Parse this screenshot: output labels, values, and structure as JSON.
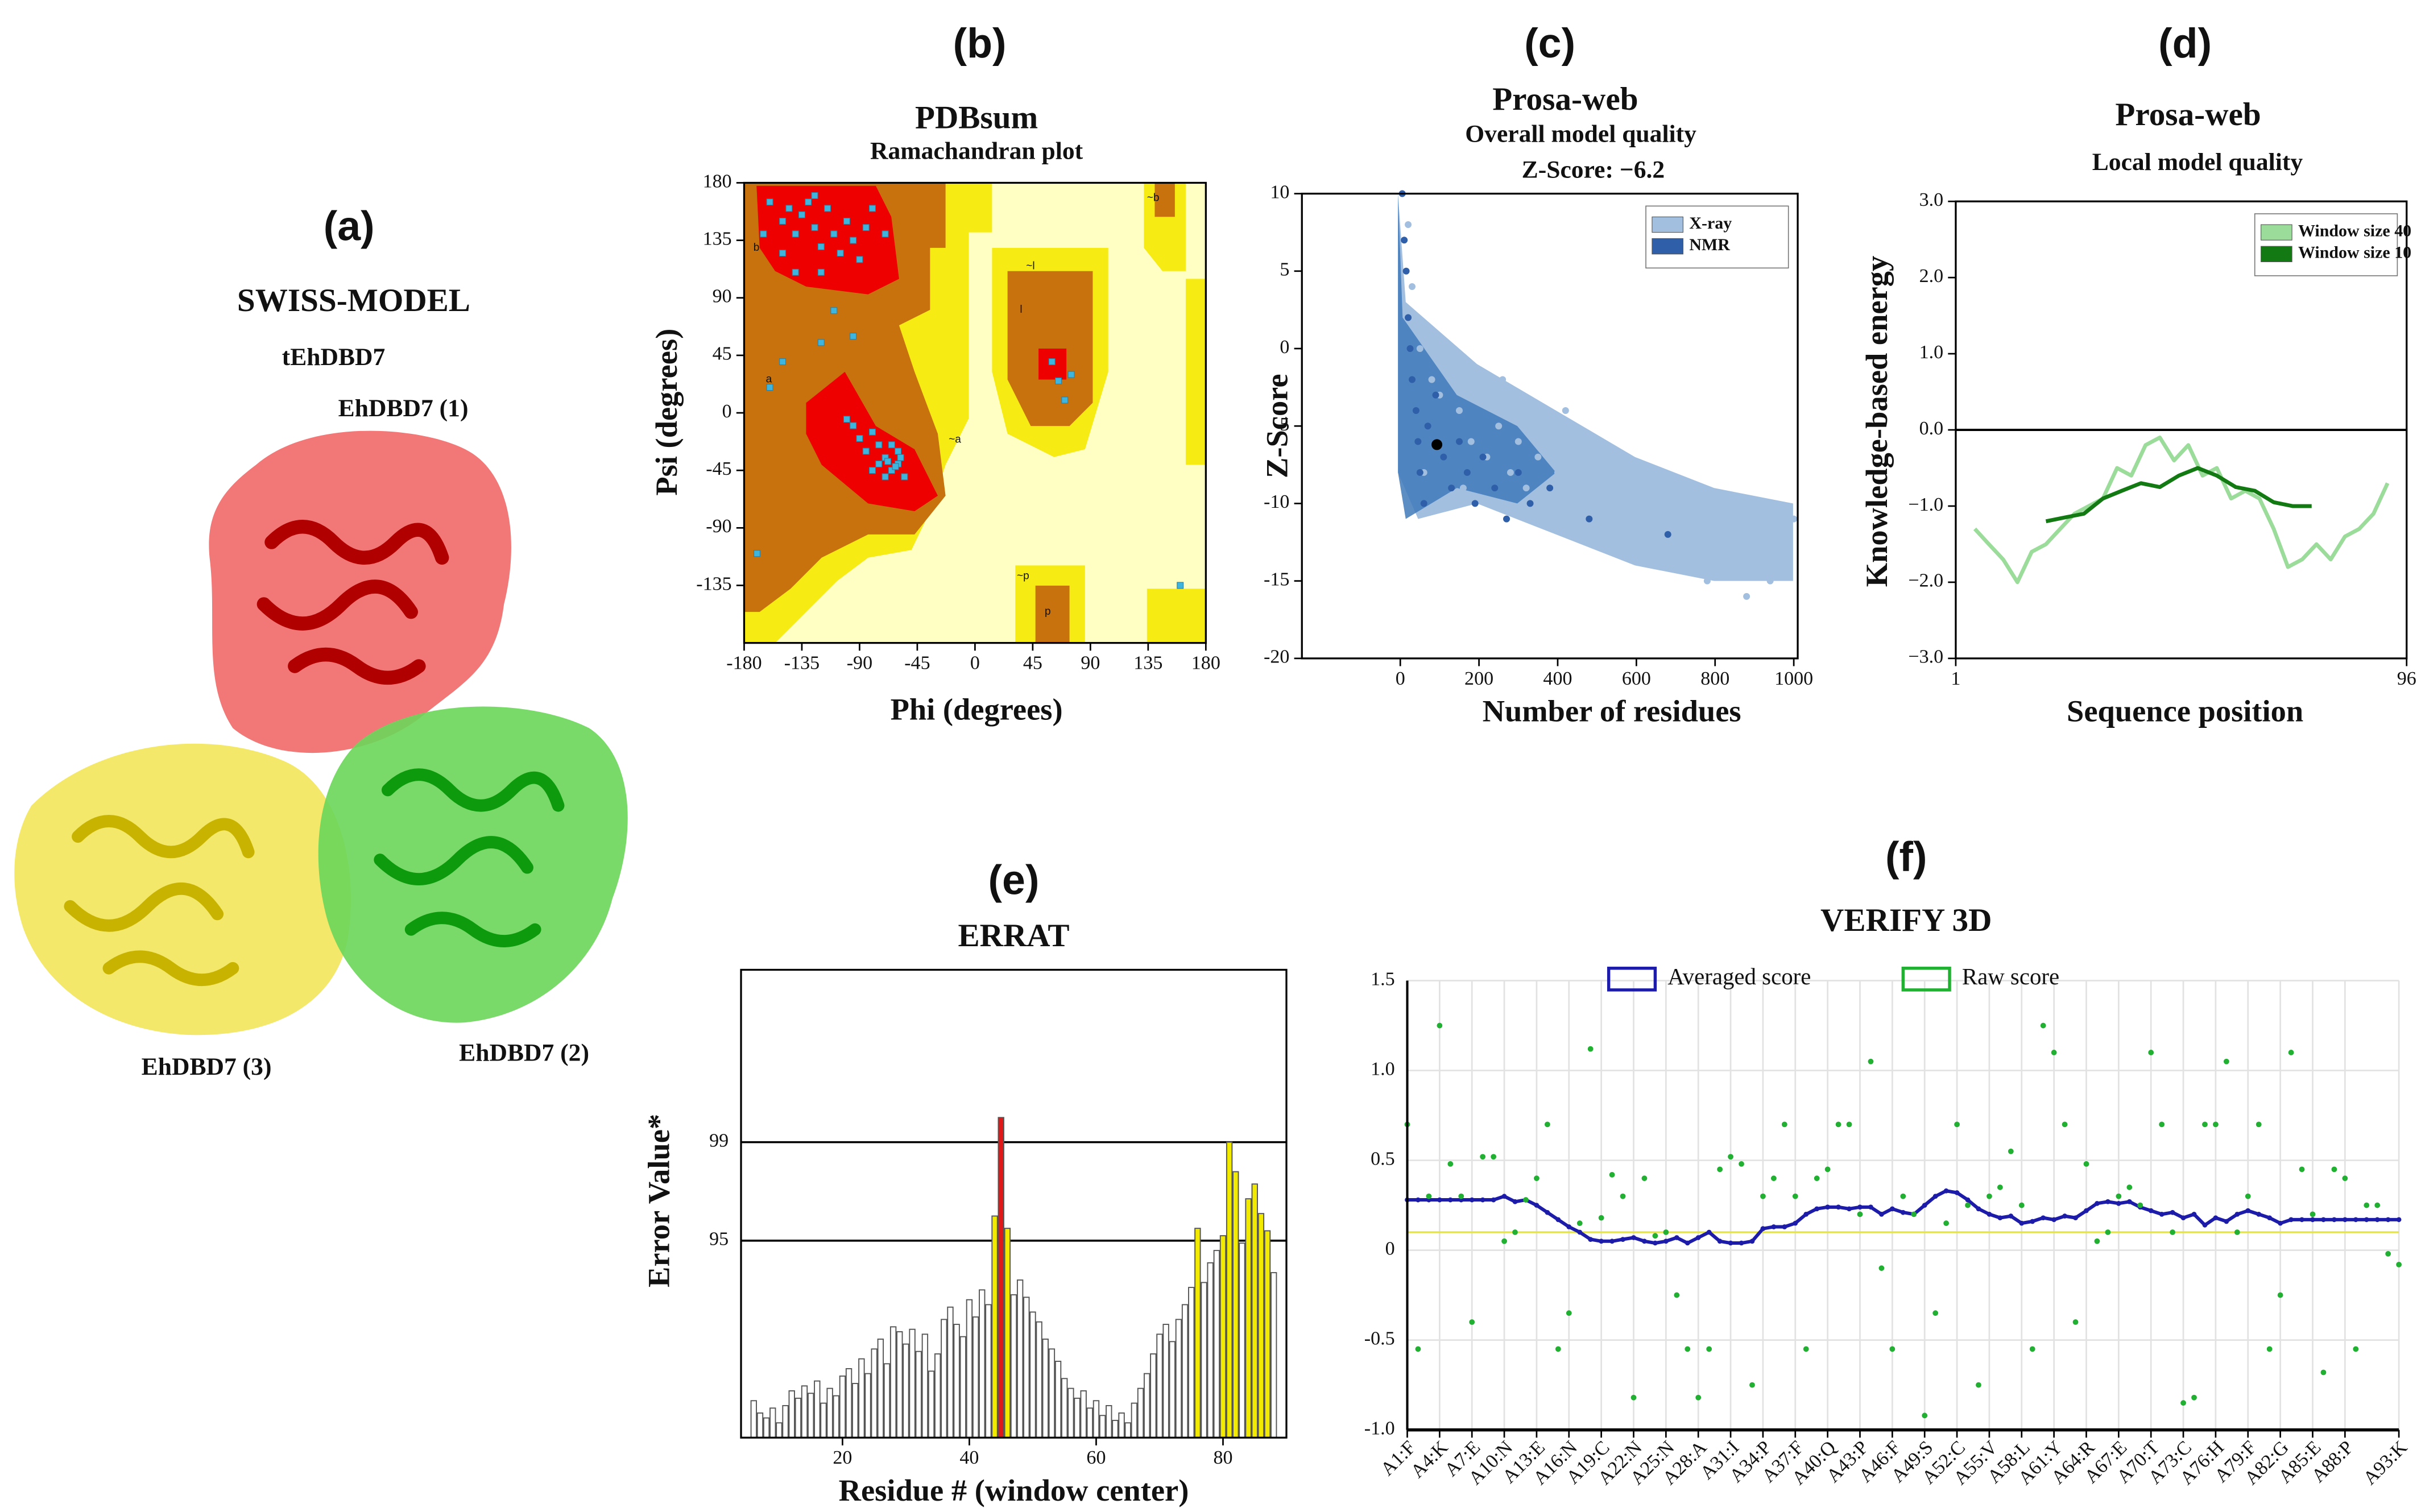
{
  "structure": {
    "header": "(a)",
    "title": "SWISS-MODEL",
    "name": "tEhDBD7",
    "domains": [
      "EhDBD7 (1)",
      "EhDBD7 (2)",
      "EhDBD7 (3)"
    ]
  },
  "chart_data": [
    {
      "type": "scatter",
      "header": "(b)",
      "title": "PDBsum",
      "subtitle": "Ramachandran plot",
      "xlabel": "Phi (degrees)",
      "ylabel": "Psi (degrees)",
      "region_labels": [
        "b",
        "a",
        "l",
        "~b",
        "~a",
        "p",
        "~p",
        "~l"
      ],
      "x": [
        -160,
        -150,
        -145,
        -140,
        -135,
        -130,
        -125,
        -120,
        -115,
        -110,
        -105,
        -100,
        -95,
        -90,
        -85,
        -150,
        -165,
        -140,
        -120,
        -80,
        -70,
        -125,
        -90,
        -85,
        -80,
        -75,
        -70,
        -65,
        -60,
        -65,
        -70,
        -55,
        -60,
        -80,
        -75,
        -95,
        -100,
        -68,
        -62,
        -58,
        -150,
        -120,
        -110,
        -95,
        -160,
        60,
        65,
        70,
        75,
        -170,
        160
      ],
      "y": [
        165,
        150,
        160,
        140,
        155,
        165,
        145,
        130,
        160,
        140,
        125,
        150,
        135,
        120,
        145,
        125,
        140,
        110,
        110,
        160,
        140,
        170,
        -20,
        -30,
        -15,
        -40,
        -35,
        -45,
        -40,
        -25,
        -50,
        -50,
        -30,
        -45,
        -25,
        -10,
        -5,
        -38,
        -42,
        -35,
        40,
        55,
        80,
        60,
        20,
        40,
        25,
        10,
        30,
        -110,
        -135
      ],
      "color": "#3fb4dc",
      "xlim": [
        -180,
        180
      ],
      "ylim": [
        -180,
        180
      ],
      "xticks": [
        -180,
        -135,
        -90,
        -45,
        0,
        45,
        90,
        135,
        180
      ],
      "yticks": [
        -135,
        -90,
        -45,
        0,
        45,
        90,
        135,
        180
      ]
    },
    {
      "type": "scatter",
      "header": "(c)",
      "title": "Prosa-web",
      "subtitle": "Overall model quality",
      "annotation": "Z-Score: −6.2",
      "xlabel": "Number of residues",
      "ylabel": "Z-Score",
      "series": [
        {
          "name": "X-ray",
          "color": "#a3bfe0",
          "x": [
            20,
            30,
            50,
            80,
            100,
            120,
            150,
            180,
            200,
            220,
            250,
            280,
            300,
            320,
            350,
            380,
            400,
            430,
            460,
            500,
            520,
            550,
            580,
            600,
            640,
            680,
            700,
            740,
            780,
            800,
            840,
            880,
            900,
            940,
            980,
            1000,
            60,
            160,
            260,
            420
          ],
          "values": [
            8,
            4,
            0,
            -2,
            -3,
            -1,
            -4,
            -6,
            -3,
            -7,
            -5,
            -8,
            -6,
            -9,
            -7,
            -10,
            -8,
            -11,
            -9,
            -12,
            -10,
            -11,
            -13,
            -11,
            -12,
            -14,
            -12,
            -13,
            -15,
            -13,
            -14,
            -16,
            -13,
            -15,
            -14,
            -11,
            -8,
            -9,
            -2,
            -4
          ]
        },
        {
          "name": "NMR",
          "color": "#2f5fa8",
          "x": [
            5,
            10,
            15,
            20,
            25,
            30,
            40,
            45,
            50,
            60,
            70,
            90,
            110,
            130,
            150,
            170,
            190,
            210,
            240,
            270,
            300,
            330,
            380,
            480,
            680
          ],
          "values": [
            10,
            7,
            5,
            2,
            0,
            -2,
            -4,
            -6,
            -8,
            -10,
            -5,
            -3,
            -7,
            -9,
            -6,
            -8,
            -10,
            -7,
            -9,
            -11,
            -8,
            -10,
            -9,
            -11,
            -12
          ]
        }
      ],
      "highlight": {
        "x": 93,
        "y": -6.2,
        "color": "#000000"
      },
      "legend": "upper right",
      "xlim": [
        -250,
        1010
      ],
      "ylim": [
        -20,
        10
      ],
      "xticks": [
        0,
        200,
        400,
        600,
        800,
        1000
      ],
      "yticks": [
        -20,
        -15,
        -10,
        -5,
        0,
        5,
        10
      ]
    },
    {
      "type": "line",
      "header": "(d)",
      "title": "Prosa-web",
      "subtitle": "Local model quality",
      "xlabel": "Sequence position",
      "ylabel": "Knowledge-based energy",
      "series": [
        {
          "name": "Window size 40",
          "color": "#9bdc9b",
          "x": [
            5,
            8,
            11,
            14,
            17,
            20,
            23,
            26,
            29,
            32,
            35,
            38,
            41,
            44,
            47,
            50,
            53,
            56,
            59,
            62,
            65,
            68,
            71,
            74,
            77,
            80,
            83,
            86,
            89,
            92
          ],
          "values": [
            -1.3,
            -1.5,
            -1.7,
            -2.0,
            -1.6,
            -1.5,
            -1.3,
            -1.1,
            -1.0,
            -0.9,
            -0.5,
            -0.6,
            -0.2,
            -0.1,
            -0.4,
            -0.2,
            -0.6,
            -0.5,
            -0.9,
            -0.8,
            -0.9,
            -1.3,
            -1.8,
            -1.7,
            -1.5,
            -1.7,
            -1.4,
            -1.3,
            -1.1,
            -0.7
          ]
        },
        {
          "name": "Window size 10",
          "color": "#137a13",
          "x": [
            20,
            24,
            28,
            32,
            36,
            40,
            44,
            48,
            52,
            56,
            60,
            64,
            68,
            72,
            76
          ],
          "values": [
            -1.2,
            -1.15,
            -1.1,
            -0.9,
            -0.8,
            -0.7,
            -0.75,
            -0.6,
            -0.5,
            -0.6,
            -0.75,
            -0.8,
            -0.95,
            -1.0,
            -1.0
          ]
        }
      ],
      "legend": "upper right",
      "xlim": [
        1,
        96
      ],
      "ylim": [
        -3,
        3
      ],
      "xticks": [
        1,
        96
      ],
      "yticks": [
        {
          "value": -3,
          "label": "−3.0"
        },
        {
          "value": -2,
          "label": "−2.0"
        },
        {
          "value": -1,
          "label": "−1.0"
        },
        {
          "value": 0,
          "label": "0.0"
        },
        {
          "value": 1,
          "label": "1.0"
        },
        {
          "value": 2,
          "label": "2.0"
        },
        {
          "value": 3,
          "label": "3.0"
        }
      ]
    },
    {
      "type": "bar",
      "header": "(e)",
      "title": "ERRAT",
      "xlabel": "Residue # (window center)",
      "ylabel": "Error Value*",
      "x": [
        6,
        7,
        8,
        9,
        10,
        11,
        12,
        13,
        14,
        15,
        16,
        17,
        18,
        19,
        20,
        21,
        22,
        23,
        24,
        25,
        26,
        27,
        28,
        29,
        30,
        31,
        32,
        33,
        34,
        35,
        36,
        37,
        38,
        39,
        40,
        41,
        42,
        43,
        44,
        45,
        46,
        47,
        48,
        49,
        50,
        51,
        52,
        53,
        54,
        55,
        56,
        57,
        58,
        59,
        60,
        61,
        62,
        63,
        64,
        65,
        66,
        67,
        68,
        69,
        70,
        71,
        72,
        73,
        74,
        75,
        76,
        77,
        78,
        79,
        80,
        81,
        82,
        83,
        84,
        85,
        86,
        87,
        88
      ],
      "values": [
        88.5,
        88.0,
        87.8,
        88.2,
        87.6,
        88.3,
        88.9,
        88.6,
        89.1,
        88.8,
        89.3,
        88.4,
        89.0,
        88.7,
        89.5,
        89.8,
        89.2,
        90.2,
        89.6,
        90.6,
        91.0,
        90.0,
        91.5,
        91.3,
        90.8,
        91.4,
        90.5,
        91.2,
        89.7,
        90.4,
        91.8,
        92.3,
        91.6,
        91.1,
        92.6,
        91.9,
        93.0,
        92.4,
        96.0,
        100.0,
        95.5,
        92.8,
        93.4,
        92.7,
        92.1,
        91.7,
        91.0,
        90.6,
        90.1,
        89.4,
        89.0,
        88.6,
        88.9,
        88.2,
        88.5,
        87.9,
        88.3,
        87.7,
        88.0,
        87.6,
        88.4,
        89.0,
        89.6,
        90.4,
        91.2,
        91.6,
        90.9,
        91.8,
        92.4,
        93.1,
        95.5,
        93.3,
        94.1,
        94.6,
        95.2,
        99.0,
        97.8,
        94.9,
        96.7,
        97.3,
        96.1,
        95.4,
        93.7
      ],
      "colors": [
        "#ffffff",
        "#f2ea00",
        "#e01818"
      ],
      "edge_color": "#555555",
      "grid": true,
      "grid_color": "#000000",
      "xlim": [
        4,
        90
      ],
      "ylim": [
        87,
        106
      ],
      "xticks": [
        20,
        40,
        60,
        80
      ],
      "yticks": [
        95,
        99
      ]
    },
    {
      "type": "line",
      "header": "(f)",
      "title": "VERIFY 3D",
      "x": [
        1,
        2,
        3,
        4,
        5,
        6,
        7,
        8,
        9,
        10,
        11,
        12,
        13,
        14,
        15,
        16,
        17,
        18,
        19,
        20,
        21,
        22,
        23,
        24,
        25,
        26,
        27,
        28,
        29,
        30,
        31,
        32,
        33,
        34,
        35,
        36,
        37,
        38,
        39,
        40,
        41,
        42,
        43,
        44,
        45,
        46,
        47,
        48,
        49,
        50,
        51,
        52,
        53,
        54,
        55,
        56,
        57,
        58,
        59,
        60,
        61,
        62,
        63,
        64,
        65,
        66,
        67,
        68,
        69,
        70,
        71,
        72,
        73,
        74,
        75,
        76,
        77,
        78,
        79,
        80,
        81,
        82,
        83,
        84,
        85,
        86,
        87,
        88,
        89,
        90,
        91,
        92,
        93
      ],
      "series": [
        {
          "name": "Averaged score",
          "color": "#1c1ca8",
          "style": "line",
          "values": [
            0.28,
            0.28,
            0.28,
            0.28,
            0.28,
            0.28,
            0.28,
            0.28,
            0.28,
            0.3,
            0.27,
            0.28,
            0.25,
            0.21,
            0.17,
            0.13,
            0.1,
            0.06,
            0.05,
            0.05,
            0.06,
            0.07,
            0.05,
            0.04,
            0.05,
            0.07,
            0.04,
            0.07,
            0.1,
            0.05,
            0.04,
            0.04,
            0.05,
            0.12,
            0.13,
            0.13,
            0.15,
            0.2,
            0.23,
            0.24,
            0.24,
            0.23,
            0.24,
            0.24,
            0.2,
            0.23,
            0.21,
            0.2,
            0.25,
            0.3,
            0.33,
            0.32,
            0.28,
            0.23,
            0.2,
            0.18,
            0.19,
            0.15,
            0.16,
            0.18,
            0.17,
            0.19,
            0.18,
            0.22,
            0.26,
            0.27,
            0.26,
            0.27,
            0.24,
            0.22,
            0.2,
            0.21,
            0.18,
            0.2,
            0.14,
            0.18,
            0.16,
            0.2,
            0.22,
            0.2,
            0.18,
            0.15,
            0.17,
            0.17,
            0.17,
            0.17,
            0.17,
            0.17,
            0.17,
            0.17,
            0.17,
            0.17,
            0.17
          ]
        },
        {
          "name": "Raw score",
          "color": "#22b033",
          "style": "points",
          "values": [
            0.7,
            -0.55,
            0.3,
            1.25,
            0.48,
            0.3,
            -0.4,
            0.52,
            0.52,
            0.05,
            0.1,
            0.28,
            0.4,
            0.7,
            -0.55,
            -0.35,
            0.15,
            1.12,
            0.18,
            0.42,
            0.3,
            -0.82,
            0.4,
            0.08,
            0.1,
            -0.25,
            -0.55,
            -0.82,
            -0.55,
            0.45,
            0.52,
            0.48,
            -0.75,
            0.3,
            0.4,
            0.7,
            0.3,
            -0.55,
            0.4,
            0.45,
            0.7,
            0.7,
            0.2,
            1.05,
            -0.1,
            -0.55,
            0.3,
            0.2,
            -0.92,
            -0.35,
            0.15,
            0.7,
            0.25,
            -0.75,
            0.3,
            0.35,
            0.55,
            0.25,
            -0.55,
            1.25,
            1.1,
            0.7,
            -0.4,
            0.48,
            0.05,
            0.1,
            0.3,
            0.35,
            0.25,
            1.1,
            0.7,
            0.1,
            -0.85,
            -0.82,
            0.7,
            0.7,
            1.05,
            0.1,
            0.3,
            0.7,
            -0.55,
            -0.25,
            1.1,
            0.45,
            0.2,
            -0.68,
            0.45,
            0.4,
            -0.55,
            0.25,
            0.25,
            -0.02,
            -0.08
          ]
        }
      ],
      "reference_line": {
        "value": 0.1,
        "color": "#e4e44a"
      },
      "legend": "upper center",
      "grid": true,
      "grid_color": "#e2e2e2",
      "xlim": [
        1,
        93
      ],
      "ylim": [
        -1,
        1.5
      ],
      "xticks": [
        {
          "value": 1,
          "label": "A1:F"
        },
        {
          "value": 4,
          "label": "A4:K"
        },
        {
          "value": 7,
          "label": "A7:E"
        },
        {
          "value": 10,
          "label": "A10:N"
        },
        {
          "value": 13,
          "label": "A13:E"
        },
        {
          "value": 16,
          "label": "A16:N"
        },
        {
          "value": 19,
          "label": "A19:C"
        },
        {
          "value": 22,
          "label": "A22:N"
        },
        {
          "value": 25,
          "label": "A25:N"
        },
        {
          "value": 28,
          "label": "A28:A"
        },
        {
          "value": 31,
          "label": "A31:I"
        },
        {
          "value": 34,
          "label": "A34:P"
        },
        {
          "value": 37,
          "label": "A37:F"
        },
        {
          "value": 40,
          "label": "A40:Q"
        },
        {
          "value": 43,
          "label": "A43:P"
        },
        {
          "value": 46,
          "label": "A46:F"
        },
        {
          "value": 49,
          "label": "A49:S"
        },
        {
          "value": 52,
          "label": "A52:C"
        },
        {
          "value": 55,
          "label": "A55:V"
        },
        {
          "value": 58,
          "label": "A58:L"
        },
        {
          "value": 61,
          "label": "A61:Y"
        },
        {
          "value": 64,
          "label": "A64:R"
        },
        {
          "value": 67,
          "label": "A67:E"
        },
        {
          "value": 70,
          "label": "A70:T"
        },
        {
          "value": 73,
          "label": "A73:C"
        },
        {
          "value": 76,
          "label": "A76:H"
        },
        {
          "value": 79,
          "label": "A79:F"
        },
        {
          "value": 82,
          "label": "A82:G"
        },
        {
          "value": 85,
          "label": "A85:E"
        },
        {
          "value": 88,
          "label": "A88:P"
        },
        {
          "value": 93,
          "label": "A93:K"
        }
      ],
      "yticks": [
        {
          "value": -1,
          "label": "-1.0"
        },
        -0.5,
        0,
        0.5,
        {
          "value": 1,
          "label": "1.0"
        },
        1.5
      ]
    }
  ]
}
